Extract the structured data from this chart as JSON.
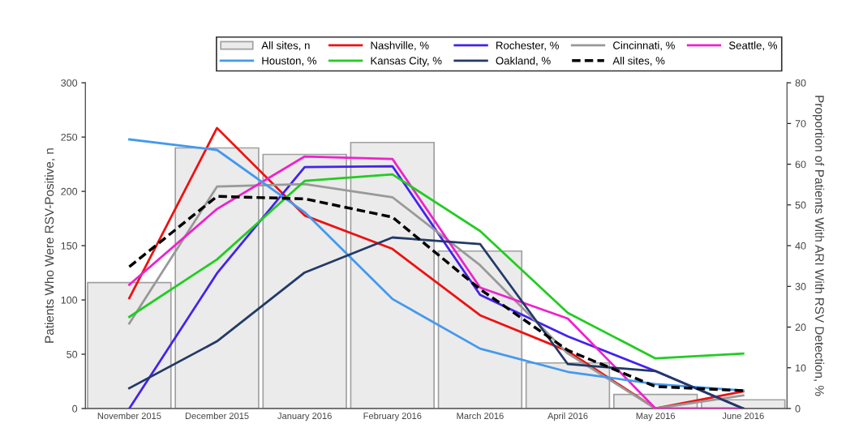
{
  "chart_data": {
    "type": "line",
    "ylabel": "Patients Who Were RSV-Positive, n",
    "y2label": "Proportion of Patients With ARI With RSV Detection, %",
    "categories": [
      "November 2015",
      "December 2015",
      "January 2016",
      "February 2016",
      "March 2016",
      "April 2016",
      "May 2016",
      "June 2016"
    ],
    "ylim": [
      0,
      300
    ],
    "yticks": [
      0,
      50,
      100,
      150,
      200,
      250,
      300
    ],
    "y2lim": [
      0,
      80
    ],
    "y2ticks": [
      0,
      10,
      20,
      30,
      40,
      50,
      60,
      70,
      80
    ],
    "grid": false,
    "legend": "top right",
    "line_style": "solid",
    "marker": "none",
    "series": [
      {
        "name": "All sites, n",
        "type": "bar",
        "color": "#ebebeb",
        "values": [
          116,
          240,
          234,
          245,
          145,
          42,
          13,
          8
        ]
      },
      {
        "name": "Nashville, %",
        "color": "#ee1111",
        "axis": "y2",
        "values": [
          27.1,
          68.9,
          47.4,
          39.2,
          22.9,
          14.1,
          0,
          4.2
        ]
      },
      {
        "name": "Rochester, %",
        "color": "#4422ee",
        "axis": "y2",
        "values": [
          0,
          33.2,
          59.3,
          59.5,
          27.9,
          17.7,
          9.2,
          0
        ]
      },
      {
        "name": "Cincinnati, %",
        "color": "#999999",
        "axis": "y2",
        "values": [
          20.9,
          54.5,
          55.1,
          51.9,
          35.2,
          13.5,
          0,
          3.2
        ]
      },
      {
        "name": "Seattle, %",
        "color": "#ee22cc",
        "axis": "y2",
        "values": [
          30.4,
          49.0,
          61.9,
          61.3,
          29.7,
          22.1,
          0,
          0
        ]
      },
      {
        "name": "Houston, %",
        "color": "#4499ee",
        "axis": "y2",
        "values": [
          66.1,
          63.5,
          48.2,
          26.9,
          14.7,
          9.0,
          6.0,
          4.4
        ]
      },
      {
        "name": "Kansas City, %",
        "color": "#22cc22",
        "axis": "y2",
        "values": [
          22.5,
          36.6,
          55.9,
          57.5,
          43.6,
          23.5,
          12.3,
          13.5
        ]
      },
      {
        "name": "Oakland, %",
        "color": "#223a66",
        "axis": "y2",
        "values": [
          5.0,
          16.5,
          33.4,
          42.0,
          40.4,
          10.9,
          9.2,
          0
        ]
      },
      {
        "name": "All sites, %",
        "color": "#000000",
        "axis": "y2",
        "line_style": "dashed",
        "values": [
          34.8,
          52.1,
          51.5,
          47.0,
          29.3,
          14.3,
          5.4,
          4.4
        ]
      }
    ]
  }
}
